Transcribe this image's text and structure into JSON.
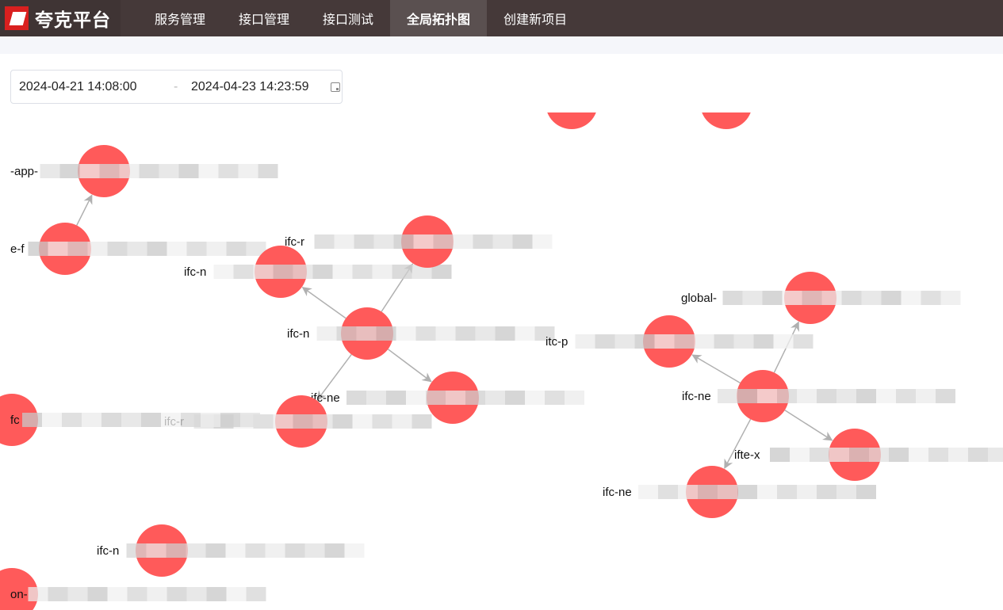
{
  "app": {
    "title": "夸克平台",
    "logo_icon": "quark-logo-icon"
  },
  "nav": [
    {
      "label": "服务管理",
      "active": false
    },
    {
      "label": "接口管理",
      "active": false
    },
    {
      "label": "接口测试",
      "active": false
    },
    {
      "label": "全局拓扑图",
      "active": true
    },
    {
      "label": "创建新项目",
      "active": false
    }
  ],
  "date_range": {
    "start": "2024-04-21 14:08:00",
    "separator": "-",
    "end": "2024-04-23 14:23:59",
    "icon": "calendar-icon"
  },
  "graph": {
    "node_color": "#ff5a5a",
    "edge_color": "#b0b0b0",
    "nodes": [
      {
        "id": "A",
        "label": "-app-"
      },
      {
        "id": "B",
        "label": "e-f"
      },
      {
        "id": "C",
        "label": "ifc-n"
      },
      {
        "id": "D",
        "label": "ifc-r"
      },
      {
        "id": "E",
        "label": "ifc-n"
      },
      {
        "id": "F",
        "label": "ifc-ne"
      },
      {
        "id": "G",
        "label": "ifc-r"
      },
      {
        "id": "H",
        "label": "fc"
      },
      {
        "id": "I",
        "label": ""
      },
      {
        "id": "J",
        "label": ""
      },
      {
        "id": "K",
        "label": "itc-p"
      },
      {
        "id": "L",
        "label": "global-"
      },
      {
        "id": "M",
        "label": "ifc-ne"
      },
      {
        "id": "N",
        "label": "ifte-x"
      },
      {
        "id": "O",
        "label": "ifc-ne"
      },
      {
        "id": "P",
        "label": "ifc-n"
      },
      {
        "id": "Q",
        "label": "on-"
      }
    ],
    "edges": [
      [
        "B",
        "A"
      ],
      [
        "E",
        "C"
      ],
      [
        "E",
        "D"
      ],
      [
        "E",
        "F"
      ],
      [
        "E",
        "G"
      ],
      [
        "M",
        "K"
      ],
      [
        "M",
        "L"
      ],
      [
        "M",
        "N"
      ],
      [
        "M",
        "O"
      ]
    ]
  }
}
